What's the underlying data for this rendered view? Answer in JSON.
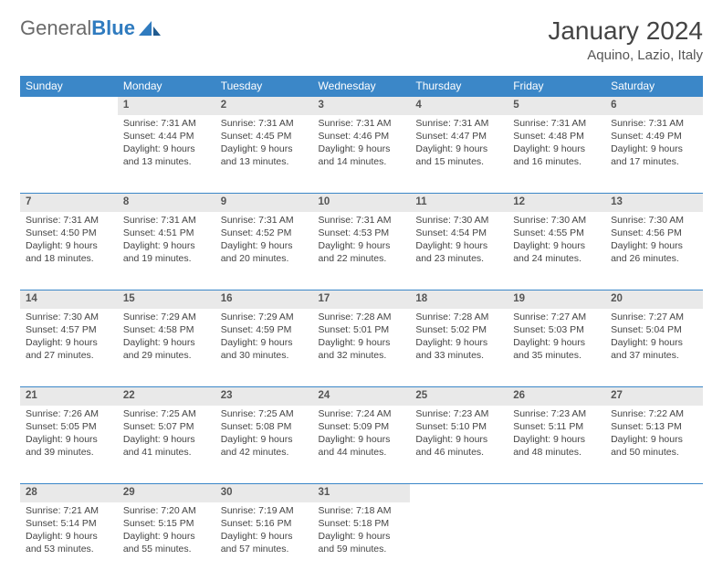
{
  "logo": {
    "text1": "General",
    "text2": "Blue"
  },
  "title": "January 2024",
  "location": "Aquino, Lazio, Italy",
  "colors": {
    "header_bg": "#3b87c8",
    "header_text": "#ffffff",
    "daynum_bg": "#e9e9e9",
    "divider": "#3b87c8",
    "body_text": "#444444"
  },
  "weekdays": [
    "Sunday",
    "Monday",
    "Tuesday",
    "Wednesday",
    "Thursday",
    "Friday",
    "Saturday"
  ],
  "weeks": [
    {
      "nums": [
        "",
        "1",
        "2",
        "3",
        "4",
        "5",
        "6"
      ],
      "cells": [
        null,
        {
          "sr": "Sunrise: 7:31 AM",
          "ss": "Sunset: 4:44 PM",
          "d1": "Daylight: 9 hours",
          "d2": "and 13 minutes."
        },
        {
          "sr": "Sunrise: 7:31 AM",
          "ss": "Sunset: 4:45 PM",
          "d1": "Daylight: 9 hours",
          "d2": "and 13 minutes."
        },
        {
          "sr": "Sunrise: 7:31 AM",
          "ss": "Sunset: 4:46 PM",
          "d1": "Daylight: 9 hours",
          "d2": "and 14 minutes."
        },
        {
          "sr": "Sunrise: 7:31 AM",
          "ss": "Sunset: 4:47 PM",
          "d1": "Daylight: 9 hours",
          "d2": "and 15 minutes."
        },
        {
          "sr": "Sunrise: 7:31 AM",
          "ss": "Sunset: 4:48 PM",
          "d1": "Daylight: 9 hours",
          "d2": "and 16 minutes."
        },
        {
          "sr": "Sunrise: 7:31 AM",
          "ss": "Sunset: 4:49 PM",
          "d1": "Daylight: 9 hours",
          "d2": "and 17 minutes."
        }
      ]
    },
    {
      "nums": [
        "7",
        "8",
        "9",
        "10",
        "11",
        "12",
        "13"
      ],
      "cells": [
        {
          "sr": "Sunrise: 7:31 AM",
          "ss": "Sunset: 4:50 PM",
          "d1": "Daylight: 9 hours",
          "d2": "and 18 minutes."
        },
        {
          "sr": "Sunrise: 7:31 AM",
          "ss": "Sunset: 4:51 PM",
          "d1": "Daylight: 9 hours",
          "d2": "and 19 minutes."
        },
        {
          "sr": "Sunrise: 7:31 AM",
          "ss": "Sunset: 4:52 PM",
          "d1": "Daylight: 9 hours",
          "d2": "and 20 minutes."
        },
        {
          "sr": "Sunrise: 7:31 AM",
          "ss": "Sunset: 4:53 PM",
          "d1": "Daylight: 9 hours",
          "d2": "and 22 minutes."
        },
        {
          "sr": "Sunrise: 7:30 AM",
          "ss": "Sunset: 4:54 PM",
          "d1": "Daylight: 9 hours",
          "d2": "and 23 minutes."
        },
        {
          "sr": "Sunrise: 7:30 AM",
          "ss": "Sunset: 4:55 PM",
          "d1": "Daylight: 9 hours",
          "d2": "and 24 minutes."
        },
        {
          "sr": "Sunrise: 7:30 AM",
          "ss": "Sunset: 4:56 PM",
          "d1": "Daylight: 9 hours",
          "d2": "and 26 minutes."
        }
      ]
    },
    {
      "nums": [
        "14",
        "15",
        "16",
        "17",
        "18",
        "19",
        "20"
      ],
      "cells": [
        {
          "sr": "Sunrise: 7:30 AM",
          "ss": "Sunset: 4:57 PM",
          "d1": "Daylight: 9 hours",
          "d2": "and 27 minutes."
        },
        {
          "sr": "Sunrise: 7:29 AM",
          "ss": "Sunset: 4:58 PM",
          "d1": "Daylight: 9 hours",
          "d2": "and 29 minutes."
        },
        {
          "sr": "Sunrise: 7:29 AM",
          "ss": "Sunset: 4:59 PM",
          "d1": "Daylight: 9 hours",
          "d2": "and 30 minutes."
        },
        {
          "sr": "Sunrise: 7:28 AM",
          "ss": "Sunset: 5:01 PM",
          "d1": "Daylight: 9 hours",
          "d2": "and 32 minutes."
        },
        {
          "sr": "Sunrise: 7:28 AM",
          "ss": "Sunset: 5:02 PM",
          "d1": "Daylight: 9 hours",
          "d2": "and 33 minutes."
        },
        {
          "sr": "Sunrise: 7:27 AM",
          "ss": "Sunset: 5:03 PM",
          "d1": "Daylight: 9 hours",
          "d2": "and 35 minutes."
        },
        {
          "sr": "Sunrise: 7:27 AM",
          "ss": "Sunset: 5:04 PM",
          "d1": "Daylight: 9 hours",
          "d2": "and 37 minutes."
        }
      ]
    },
    {
      "nums": [
        "21",
        "22",
        "23",
        "24",
        "25",
        "26",
        "27"
      ],
      "cells": [
        {
          "sr": "Sunrise: 7:26 AM",
          "ss": "Sunset: 5:05 PM",
          "d1": "Daylight: 9 hours",
          "d2": "and 39 minutes."
        },
        {
          "sr": "Sunrise: 7:25 AM",
          "ss": "Sunset: 5:07 PM",
          "d1": "Daylight: 9 hours",
          "d2": "and 41 minutes."
        },
        {
          "sr": "Sunrise: 7:25 AM",
          "ss": "Sunset: 5:08 PM",
          "d1": "Daylight: 9 hours",
          "d2": "and 42 minutes."
        },
        {
          "sr": "Sunrise: 7:24 AM",
          "ss": "Sunset: 5:09 PM",
          "d1": "Daylight: 9 hours",
          "d2": "and 44 minutes."
        },
        {
          "sr": "Sunrise: 7:23 AM",
          "ss": "Sunset: 5:10 PM",
          "d1": "Daylight: 9 hours",
          "d2": "and 46 minutes."
        },
        {
          "sr": "Sunrise: 7:23 AM",
          "ss": "Sunset: 5:11 PM",
          "d1": "Daylight: 9 hours",
          "d2": "and 48 minutes."
        },
        {
          "sr": "Sunrise: 7:22 AM",
          "ss": "Sunset: 5:13 PM",
          "d1": "Daylight: 9 hours",
          "d2": "and 50 minutes."
        }
      ]
    },
    {
      "nums": [
        "28",
        "29",
        "30",
        "31",
        "",
        "",
        ""
      ],
      "cells": [
        {
          "sr": "Sunrise: 7:21 AM",
          "ss": "Sunset: 5:14 PM",
          "d1": "Daylight: 9 hours",
          "d2": "and 53 minutes."
        },
        {
          "sr": "Sunrise: 7:20 AM",
          "ss": "Sunset: 5:15 PM",
          "d1": "Daylight: 9 hours",
          "d2": "and 55 minutes."
        },
        {
          "sr": "Sunrise: 7:19 AM",
          "ss": "Sunset: 5:16 PM",
          "d1": "Daylight: 9 hours",
          "d2": "and 57 minutes."
        },
        {
          "sr": "Sunrise: 7:18 AM",
          "ss": "Sunset: 5:18 PM",
          "d1": "Daylight: 9 hours",
          "d2": "and 59 minutes."
        },
        null,
        null,
        null
      ]
    }
  ]
}
